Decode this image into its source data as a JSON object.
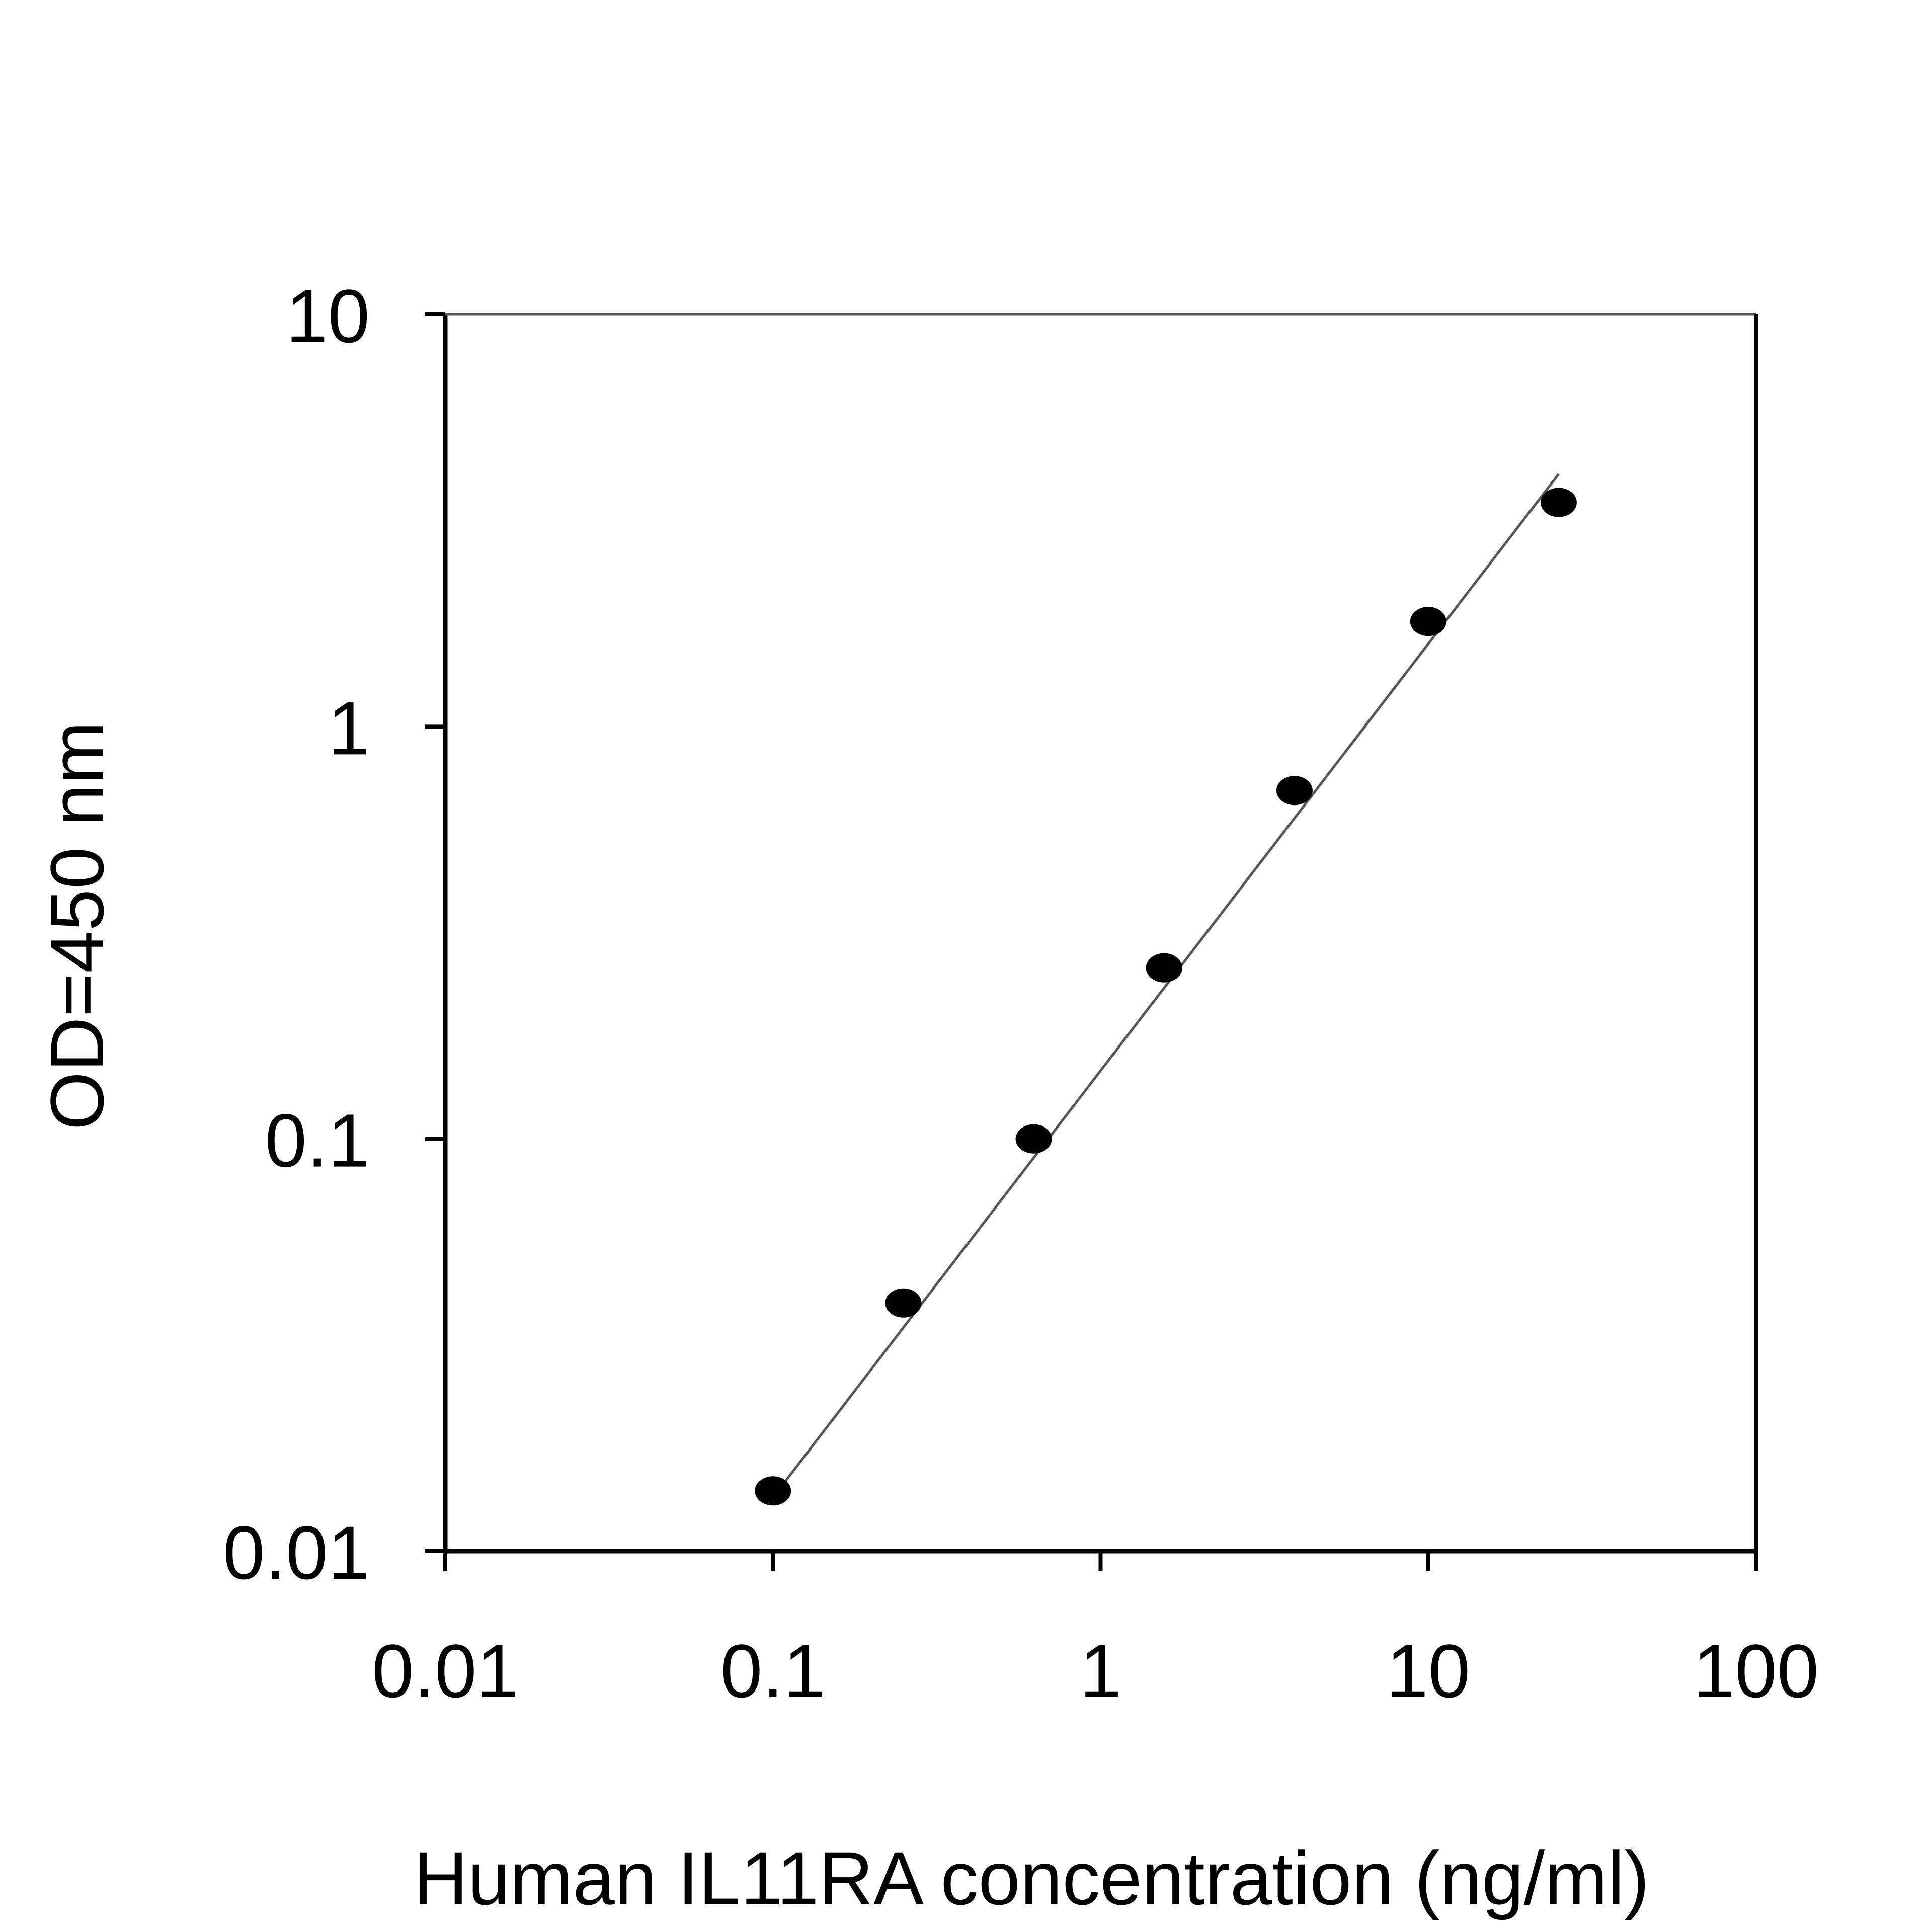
{
  "chart_data": {
    "type": "scatter",
    "title": "",
    "xlabel": "Human IL11RA concentration (ng/ml)",
    "ylabel": "OD=450 nm",
    "x_scale": "log",
    "y_scale": "log",
    "xlim": [
      0.01,
      100
    ],
    "ylim": [
      0.01,
      10
    ],
    "x_ticks": [
      0.01,
      0.1,
      1,
      10,
      100
    ],
    "x_tick_labels": [
      "0.01",
      "0.1",
      "1",
      "10",
      "100"
    ],
    "y_ticks": [
      0.01,
      0.1,
      1,
      10
    ],
    "y_tick_labels": [
      "0.01",
      "0.1",
      "1",
      "10"
    ],
    "grid": false,
    "legend": "none",
    "series": [
      {
        "marker": "filled-circle",
        "color": "#000000",
        "x": [
          0.1,
          0.25,
          0.625,
          1.5625,
          3.9063,
          10,
          25
        ],
        "y": [
          0.014,
          0.04,
          0.1,
          0.26,
          0.7,
          1.8,
          3.5
        ]
      }
    ],
    "fit_line": {
      "color": "#555555",
      "x": [
        0.1,
        25
      ],
      "y": [
        0.0135,
        4.1
      ]
    }
  }
}
